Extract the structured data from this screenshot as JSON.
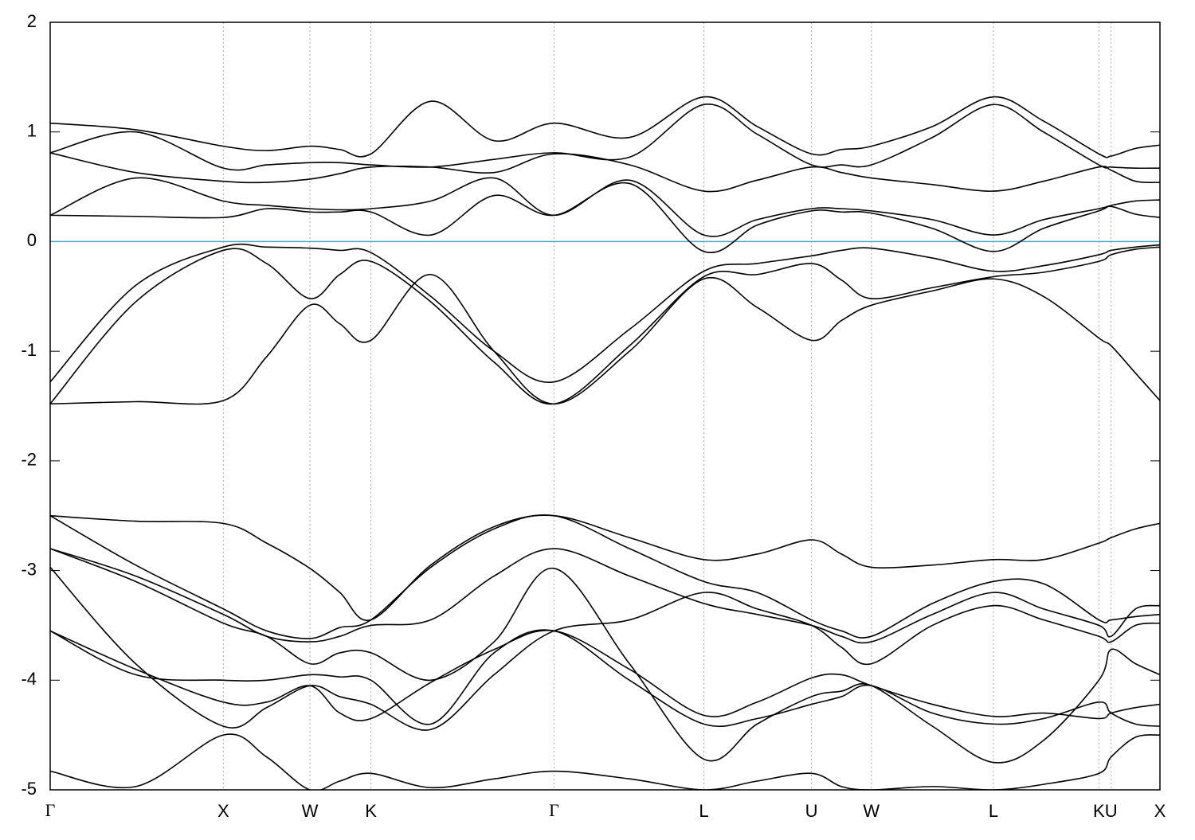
{
  "chart_data": {
    "type": "line",
    "x": [
      0,
      0.077,
      0.156,
      0.195,
      0.234,
      0.261,
      0.289,
      0.343,
      0.4,
      0.454,
      0.522,
      0.589,
      0.637,
      0.686,
      0.713,
      0.74,
      0.795,
      0.85,
      0.895,
      0.945,
      0.956,
      0.978,
      1
    ],
    "xlim": [
      0,
      1
    ],
    "xticks": [
      {
        "value": 0,
        "label": "Γ"
      },
      {
        "value": 0.156,
        "label": "X"
      },
      {
        "value": 0.234,
        "label": "W"
      },
      {
        "value": 0.289,
        "label": "K"
      },
      {
        "value": 0.454,
        "label": "Γ"
      },
      {
        "value": 0.589,
        "label": "L"
      },
      {
        "value": 0.686,
        "label": "U"
      },
      {
        "value": 0.74,
        "label": "W"
      },
      {
        "value": 0.85,
        "label": "L"
      },
      {
        "value": 0.945,
        "label": "K"
      },
      {
        "value": 0.956,
        "label": "U"
      },
      {
        "value": 1,
        "label": "X"
      }
    ],
    "ylim": [
      -5,
      2
    ],
    "yticks": [
      -5,
      -4,
      -3,
      -2,
      -1,
      0,
      1,
      2
    ],
    "grid": "x",
    "color": "#000000",
    "fermi_level": {
      "value": 0,
      "color": "#4aa8c4"
    },
    "series": [
      {
        "values": [
          1.08,
          1.02,
          0.87,
          0.83,
          0.87,
          0.84,
          0.8,
          1.28,
          0.92,
          1.08,
          0.95,
          1.32,
          1.05,
          0.8,
          0.84,
          0.87,
          1.05,
          1.32,
          1.1,
          0.8,
          0.78,
          0.85,
          0.88
        ]
      },
      {
        "values": [
          0.81,
          1.0,
          0.67,
          0.7,
          0.72,
          0.72,
          0.7,
          0.68,
          0.75,
          0.81,
          0.77,
          1.25,
          0.98,
          0.7,
          0.7,
          0.7,
          0.95,
          1.25,
          1.0,
          0.7,
          0.68,
          0.67,
          0.67
        ]
      },
      {
        "values": [
          0.81,
          0.63,
          0.55,
          0.54,
          0.57,
          0.62,
          0.68,
          0.68,
          0.63,
          0.8,
          0.7,
          0.46,
          0.56,
          0.68,
          0.63,
          0.58,
          0.52,
          0.46,
          0.55,
          0.68,
          0.65,
          0.55,
          0.54
        ]
      },
      {
        "values": [
          0.24,
          0.58,
          0.37,
          0.33,
          0.3,
          0.29,
          0.3,
          0.37,
          0.58,
          0.24,
          0.56,
          0.06,
          0.2,
          0.3,
          0.3,
          0.28,
          0.2,
          0.06,
          0.2,
          0.3,
          0.33,
          0.37,
          0.38
        ]
      },
      {
        "values": [
          0.24,
          0.23,
          0.22,
          0.3,
          0.27,
          0.27,
          0.27,
          0.06,
          0.42,
          0.24,
          0.53,
          -0.09,
          0.15,
          0.28,
          0.27,
          0.26,
          0.12,
          -0.09,
          0.12,
          0.28,
          0.32,
          0.25,
          0.22
        ]
      },
      {
        "values": [
          -1.28,
          -0.4,
          -0.05,
          -0.05,
          -0.06,
          -0.08,
          -0.1,
          -0.5,
          -1.0,
          -1.28,
          -0.8,
          -0.27,
          -0.2,
          -0.13,
          -0.08,
          -0.06,
          -0.15,
          -0.27,
          -0.22,
          -0.12,
          -0.08,
          -0.05,
          -0.03
        ]
      },
      {
        "values": [
          -1.48,
          -0.55,
          -0.08,
          -0.2,
          -0.52,
          -0.3,
          -0.18,
          -0.55,
          -1.1,
          -1.48,
          -0.95,
          -0.32,
          -0.3,
          -0.2,
          -0.35,
          -0.52,
          -0.42,
          -0.32,
          -0.28,
          -0.18,
          -0.12,
          -0.07,
          -0.05
        ]
      },
      {
        "values": [
          -1.48,
          -1.46,
          -1.45,
          -1.05,
          -0.58,
          -0.75,
          -0.9,
          -0.3,
          -1.0,
          -1.48,
          -1.0,
          -0.34,
          -0.6,
          -0.9,
          -0.72,
          -0.58,
          -0.45,
          -0.34,
          -0.5,
          -0.88,
          -0.95,
          -1.2,
          -1.45
        ]
      },
      {
        "values": [
          -2.5,
          -2.55,
          -2.57,
          -2.75,
          -2.98,
          -3.2,
          -3.45,
          -2.95,
          -2.6,
          -2.5,
          -2.7,
          -2.9,
          -2.85,
          -2.72,
          -2.85,
          -2.97,
          -2.95,
          -2.9,
          -2.9,
          -2.75,
          -2.7,
          -2.62,
          -2.57
        ]
      },
      {
        "values": [
          -2.5,
          -2.95,
          -3.35,
          -3.55,
          -3.62,
          -3.52,
          -3.45,
          -2.97,
          -2.62,
          -2.5,
          -2.8,
          -3.1,
          -3.2,
          -3.45,
          -3.55,
          -3.6,
          -3.3,
          -3.1,
          -3.12,
          -3.45,
          -3.45,
          -3.42,
          -3.4
        ]
      },
      {
        "values": [
          -2.8,
          -3.05,
          -3.4,
          -3.6,
          -3.65,
          -3.6,
          -3.5,
          -3.45,
          -3.05,
          -2.8,
          -3.05,
          -3.3,
          -3.4,
          -3.5,
          -3.6,
          -3.65,
          -3.4,
          -3.2,
          -3.35,
          -3.5,
          -3.6,
          -3.35,
          -3.32
        ]
      },
      {
        "values": [
          -2.8,
          -3.1,
          -3.48,
          -3.6,
          -3.85,
          -3.75,
          -3.75,
          -4.0,
          -3.65,
          -2.98,
          -3.85,
          -4.72,
          -4.4,
          -4.15,
          -4.1,
          -4.05,
          -4.42,
          -4.75,
          -4.55,
          -4.0,
          -3.72,
          -3.85,
          -3.95
        ]
      },
      {
        "values": [
          -2.97,
          -3.85,
          -4.42,
          -4.25,
          -4.05,
          -4.15,
          -4.22,
          -4.45,
          -3.95,
          -3.55,
          -3.45,
          -3.2,
          -3.35,
          -3.5,
          -3.7,
          -3.85,
          -3.5,
          -3.32,
          -3.45,
          -3.6,
          -3.65,
          -3.5,
          -3.48
        ]
      },
      {
        "values": [
          -3.55,
          -3.9,
          -4.2,
          -4.2,
          -4.05,
          -4.3,
          -4.35,
          -4.02,
          -3.72,
          -3.55,
          -3.9,
          -4.32,
          -4.2,
          -3.98,
          -3.95,
          -4.05,
          -4.22,
          -4.33,
          -4.3,
          -4.35,
          -4.3,
          -4.25,
          -4.22
        ]
      },
      {
        "values": [
          -3.55,
          -3.95,
          -4.0,
          -4.0,
          -3.95,
          -3.97,
          -4.0,
          -4.4,
          -3.75,
          -3.55,
          -4.0,
          -4.4,
          -4.35,
          -4.22,
          -4.15,
          -4.05,
          -4.3,
          -4.4,
          -4.35,
          -4.2,
          -4.3,
          -4.4,
          -4.42
        ]
      },
      {
        "values": [
          -4.83,
          -4.97,
          -4.5,
          -4.7,
          -5.0,
          -4.92,
          -4.85,
          -4.98,
          -4.9,
          -4.83,
          -4.9,
          -5.0,
          -4.92,
          -4.85,
          -4.97,
          -5.0,
          -4.97,
          -5.0,
          -4.95,
          -4.85,
          -4.7,
          -4.52,
          -4.5
        ]
      }
    ]
  }
}
